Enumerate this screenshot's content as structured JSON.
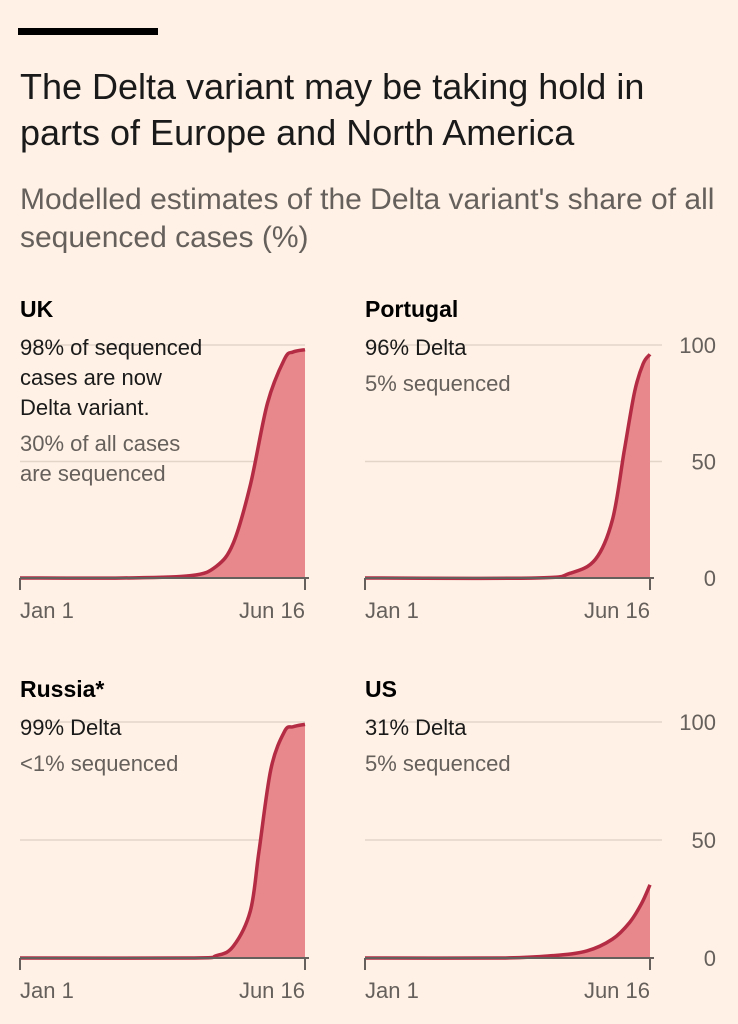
{
  "header": {
    "title": "The Delta variant may be taking hold in parts of Europe and North America",
    "subtitle": "Modelled estimates of the Delta variant's share of all sequenced cases (%)"
  },
  "colors": {
    "fill": "#e8878c",
    "line": "#b32c44",
    "axis": "#66605c",
    "background": "#fff1e5",
    "grid": "#e3d6c9"
  },
  "chart_data": [
    {
      "type": "area",
      "title": "UK",
      "notes": [
        "98% of sequenced",
        "cases are now",
        "Delta variant."
      ],
      "notes_secondary": [
        "30% of all cases",
        "are sequenced"
      ],
      "x_tick_labels": [
        "Jan 1",
        "Jun 16"
      ],
      "y_tick_labels": [],
      "ylim": [
        0,
        100
      ],
      "x": [
        0,
        60,
        100,
        115,
        125,
        135,
        145,
        155,
        160,
        167
      ],
      "values": [
        0,
        0,
        1,
        5,
        15,
        40,
        75,
        94,
        97,
        98
      ]
    },
    {
      "type": "area",
      "title": "Portugal",
      "notes": [
        "96% Delta"
      ],
      "notes_secondary": [
        "5% sequenced"
      ],
      "x_tick_labels": [
        "Jan 1",
        "Jun 16"
      ],
      "y_tick_labels": [
        "100",
        "50",
        "0"
      ],
      "ylim": [
        0,
        100
      ],
      "x": [
        0,
        100,
        120,
        135,
        145,
        152,
        158,
        163,
        167
      ],
      "values": [
        0,
        0,
        2,
        8,
        25,
        55,
        80,
        92,
        96
      ]
    },
    {
      "type": "area",
      "title": "Russia*",
      "notes": [
        "99% Delta"
      ],
      "notes_secondary": [
        "<1% sequenced"
      ],
      "x_tick_labels": [
        "Jan 1",
        "Jun 16"
      ],
      "y_tick_labels": [],
      "ylim": [
        0,
        100
      ],
      "x": [
        0,
        100,
        115,
        125,
        135,
        140,
        147,
        155,
        160,
        167
      ],
      "values": [
        0,
        0,
        1,
        5,
        20,
        45,
        80,
        96,
        98,
        99
      ]
    },
    {
      "type": "area",
      "title": "US",
      "notes": [
        "31% Delta"
      ],
      "notes_secondary": [
        "5% sequenced"
      ],
      "x_tick_labels": [
        "Jan 1",
        "Jun 16"
      ],
      "y_tick_labels": [
        "100",
        "50",
        "0"
      ],
      "ylim": [
        0,
        100
      ],
      "x": [
        0,
        80,
        110,
        130,
        145,
        155,
        162,
        167
      ],
      "values": [
        0,
        0,
        1,
        3,
        8,
        15,
        23,
        31
      ]
    }
  ]
}
